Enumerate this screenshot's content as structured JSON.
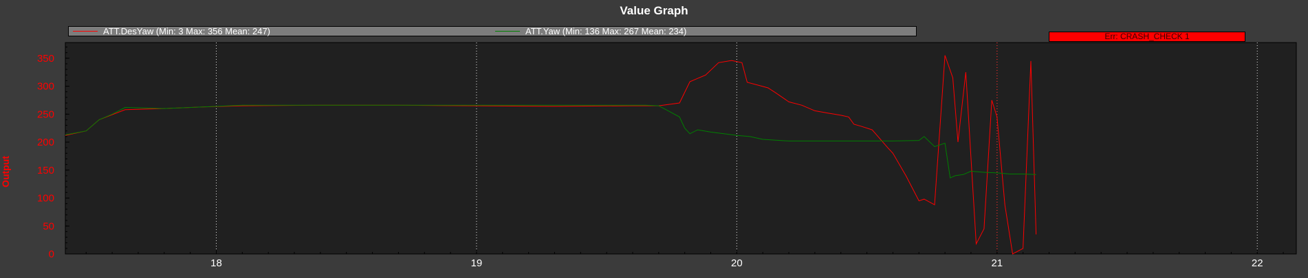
{
  "chart_data": {
    "type": "line",
    "title": "Value Graph",
    "ylabel": "Output",
    "xlabel": "",
    "xlim": [
      17.42,
      22.15
    ],
    "ylim": [
      0,
      378
    ],
    "x_ticks": [
      18,
      19,
      20,
      21,
      22
    ],
    "y_ticks": [
      0,
      50,
      100,
      150,
      200,
      250,
      300,
      350
    ],
    "grid": true,
    "legend_position": "top",
    "series": [
      {
        "name": "ATT.DesYaw (Min: 3 Max: 356 Mean: 247)",
        "color": "#ff0000",
        "x": [
          17.42,
          17.5,
          17.55,
          17.65,
          17.8,
          17.95,
          18.1,
          18.4,
          18.7,
          19.0,
          19.3,
          19.6,
          19.7,
          19.78,
          19.82,
          19.88,
          19.93,
          19.98,
          20.02,
          20.04,
          20.08,
          20.12,
          20.15,
          20.2,
          20.25,
          20.3,
          20.35,
          20.4,
          20.43,
          20.45,
          20.48,
          20.52,
          20.58,
          20.6,
          20.65,
          20.7,
          20.72,
          20.76,
          20.8,
          20.83,
          20.85,
          20.88,
          20.92,
          20.95,
          20.98,
          21.0,
          21.03,
          21.06,
          21.1,
          21.13,
          21.15
        ],
        "y": [
          212,
          220,
          240,
          258,
          260,
          263,
          265,
          266,
          266,
          265,
          264,
          265,
          265,
          270,
          308,
          320,
          342,
          346,
          342,
          307,
          302,
          297,
          288,
          272,
          266,
          256,
          252,
          248,
          245,
          232,
          228,
          222,
          190,
          180,
          140,
          95,
          98,
          88,
          355,
          315,
          200,
          325,
          18,
          45,
          275,
          245,
          88,
          0,
          10,
          345,
          35
        ]
      },
      {
        "name": "ATT.Yaw (Min: 136 Max: 267 Mean: 234)",
        "color": "#008000",
        "x": [
          17.42,
          17.5,
          17.55,
          17.6,
          17.65,
          17.8,
          17.95,
          18.1,
          18.4,
          18.7,
          19.0,
          19.3,
          19.6,
          19.65,
          19.7,
          19.74,
          19.78,
          19.8,
          19.82,
          19.85,
          19.9,
          19.95,
          20.0,
          20.05,
          20.1,
          20.2,
          20.3,
          20.4,
          20.5,
          20.6,
          20.7,
          20.72,
          20.76,
          20.8,
          20.82,
          20.84,
          20.87,
          20.9,
          20.95,
          21.0,
          21.05,
          21.1,
          21.15
        ],
        "y": [
          213,
          220,
          240,
          250,
          262,
          260,
          263,
          266,
          266,
          266,
          266,
          266,
          266,
          266,
          265,
          255,
          245,
          225,
          215,
          222,
          218,
          215,
          212,
          210,
          205,
          202,
          202,
          202,
          202,
          202,
          203,
          210,
          192,
          198,
          136,
          140,
          142,
          148,
          146,
          145,
          143,
          143,
          142
        ]
      }
    ],
    "annotations": [
      {
        "text": "Err: CRASH_CHECK 1",
        "x": 21.0,
        "color": "#ff0000"
      }
    ]
  }
}
